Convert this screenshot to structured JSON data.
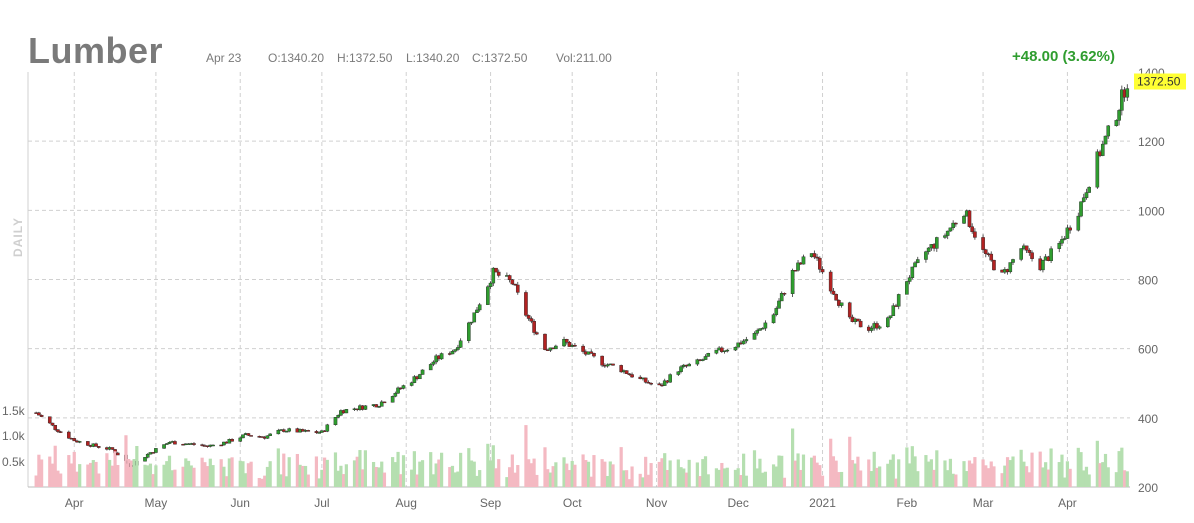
{
  "header": {
    "title": "Lumber",
    "date": "Apr 23",
    "open": "O:1340.20",
    "high": "H:1372.50",
    "low": "L:1340.20",
    "close": "C:1372.50",
    "volume": "Vol:211.00",
    "change": "+48.00 (3.62%)",
    "period": "DAILY"
  },
  "colors": {
    "up": "#2f9d2f",
    "down": "#b22222",
    "vol_up": "#b5dfb0",
    "vol_down": "#f4b9c2",
    "grid": "#d0d0d0",
    "price_tag": "#ffff33"
  },
  "chart_data": {
    "type": "candlestick",
    "title": "Lumber",
    "x_ticks": [
      "Apr",
      "May",
      "Jun",
      "Jul",
      "Aug",
      "Sep",
      "Oct",
      "Nov",
      "Dec",
      "2021",
      "Feb",
      "Mar",
      "Apr"
    ],
    "y_ticks": [
      "1400",
      "1200",
      "1000",
      "800",
      "600",
      "400",
      "200"
    ],
    "ylim": [
      200,
      1400
    ],
    "volume_ticks": [
      "1.5k",
      "1.0k",
      "0.5k"
    ],
    "last_price": "1372.50",
    "grid": true,
    "price_path": [
      [
        "2020-03-18",
        415
      ],
      [
        "2020-03-25",
        370
      ],
      [
        "2020-04-01",
        335
      ],
      [
        "2020-04-08",
        320
      ],
      [
        "2020-04-15",
        308
      ],
      [
        "2020-04-22",
        262
      ],
      [
        "2020-04-29",
        300
      ],
      [
        "2020-05-06",
        330
      ],
      [
        "2020-05-13",
        325
      ],
      [
        "2020-05-20",
        318
      ],
      [
        "2020-05-27",
        330
      ],
      [
        "2020-06-03",
        350
      ],
      [
        "2020-06-10",
        345
      ],
      [
        "2020-06-17",
        365
      ],
      [
        "2020-06-24",
        360
      ],
      [
        "2020-07-01",
        358
      ],
      [
        "2020-07-08",
        420
      ],
      [
        "2020-07-15",
        430
      ],
      [
        "2020-07-22",
        440
      ],
      [
        "2020-07-29",
        480
      ],
      [
        "2020-08-05",
        520
      ],
      [
        "2020-08-12",
        570
      ],
      [
        "2020-08-19",
        600
      ],
      [
        "2020-08-26",
        700
      ],
      [
        "2020-09-02",
        820
      ],
      [
        "2020-09-09",
        790
      ],
      [
        "2020-09-14",
        700
      ],
      [
        "2020-09-21",
        600
      ],
      [
        "2020-09-28",
        620
      ],
      [
        "2020-10-05",
        590
      ],
      [
        "2020-10-12",
        560
      ],
      [
        "2020-10-19",
        540
      ],
      [
        "2020-10-26",
        510
      ],
      [
        "2020-11-02",
        490
      ],
      [
        "2020-11-09",
        540
      ],
      [
        "2020-11-16",
        560
      ],
      [
        "2020-11-23",
        590
      ],
      [
        "2020-11-30",
        610
      ],
      [
        "2020-12-07",
        640
      ],
      [
        "2020-12-14",
        700
      ],
      [
        "2020-12-21",
        820
      ],
      [
        "2020-12-28",
        880
      ],
      [
        "2021-01-04",
        780
      ],
      [
        "2021-01-11",
        680
      ],
      [
        "2021-01-18",
        660
      ],
      [
        "2021-01-25",
        680
      ],
      [
        "2021-02-01",
        800
      ],
      [
        "2021-02-08",
        880
      ],
      [
        "2021-02-15",
        930
      ],
      [
        "2021-02-22",
        1000
      ],
      [
        "2021-03-01",
        880
      ],
      [
        "2021-03-08",
        810
      ],
      [
        "2021-03-15",
        890
      ],
      [
        "2021-03-22",
        840
      ],
      [
        "2021-03-29",
        900
      ],
      [
        "2021-04-05",
        1000
      ],
      [
        "2021-04-12",
        1150
      ],
      [
        "2021-04-19",
        1280
      ],
      [
        "2021-04-23",
        1372.5
      ]
    ]
  }
}
